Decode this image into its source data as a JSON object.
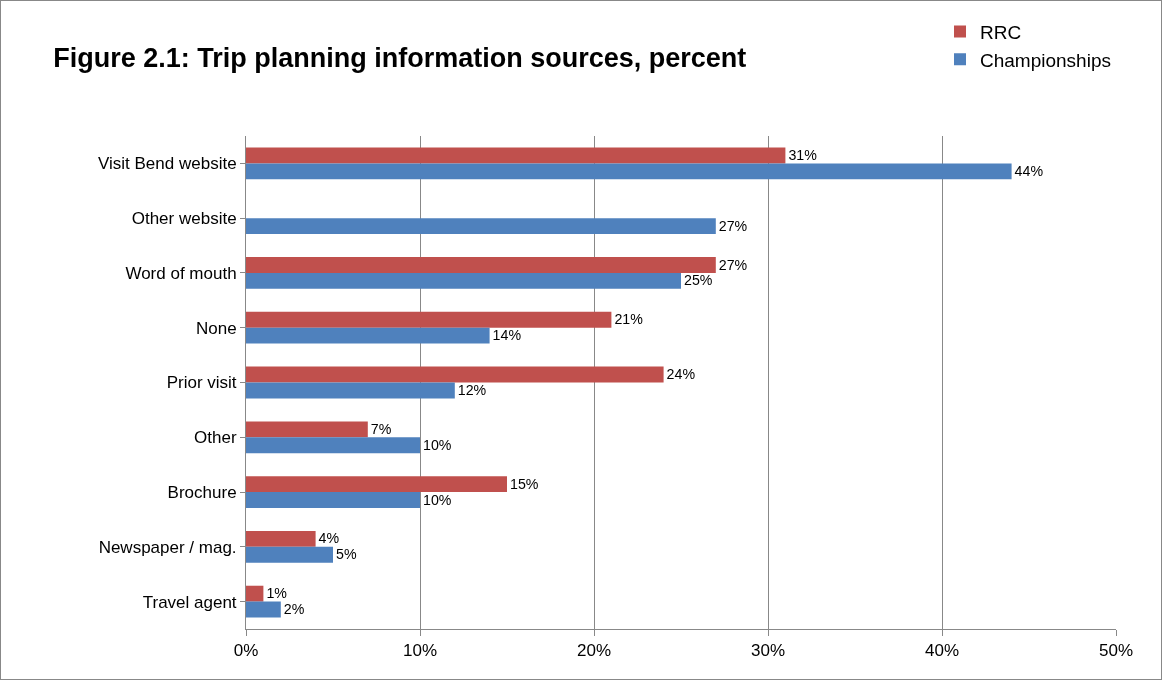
{
  "chart_data": {
    "type": "bar",
    "orientation": "horizontal",
    "title": "Figure 2.1: Trip planning information sources, percent",
    "categories": [
      "Visit Bend website",
      "Other website",
      "Word of mouth",
      "None",
      "Prior visit",
      "Other",
      "Brochure",
      "Newspaper / mag.",
      "Travel agent"
    ],
    "series": [
      {
        "name": "RRC",
        "color": "#c0504d",
        "values": [
          31,
          null,
          27,
          21,
          24,
          7,
          15,
          4,
          1
        ],
        "value_labels": [
          "31%",
          null,
          "27%",
          "21%",
          "24%",
          "7%",
          "15%",
          "4%",
          "1%"
        ]
      },
      {
        "name": "Championships",
        "color": "#4f81bd",
        "values": [
          44,
          27,
          25,
          14,
          12,
          10,
          10,
          5,
          2
        ],
        "value_labels": [
          "44%",
          "27%",
          "25%",
          "14%",
          "12%",
          "10%",
          "10%",
          "5%",
          "2%"
        ]
      }
    ],
    "xlim": [
      0,
      50
    ],
    "xticks": [
      {
        "value": 0,
        "label": "0%"
      },
      {
        "value": 10,
        "label": "10%"
      },
      {
        "value": 20,
        "label": "20%"
      },
      {
        "value": 30,
        "label": "30%"
      },
      {
        "value": 40,
        "label": "40%"
      },
      {
        "value": 50,
        "label": "50%"
      }
    ],
    "grid": "x",
    "legend": "top right"
  }
}
